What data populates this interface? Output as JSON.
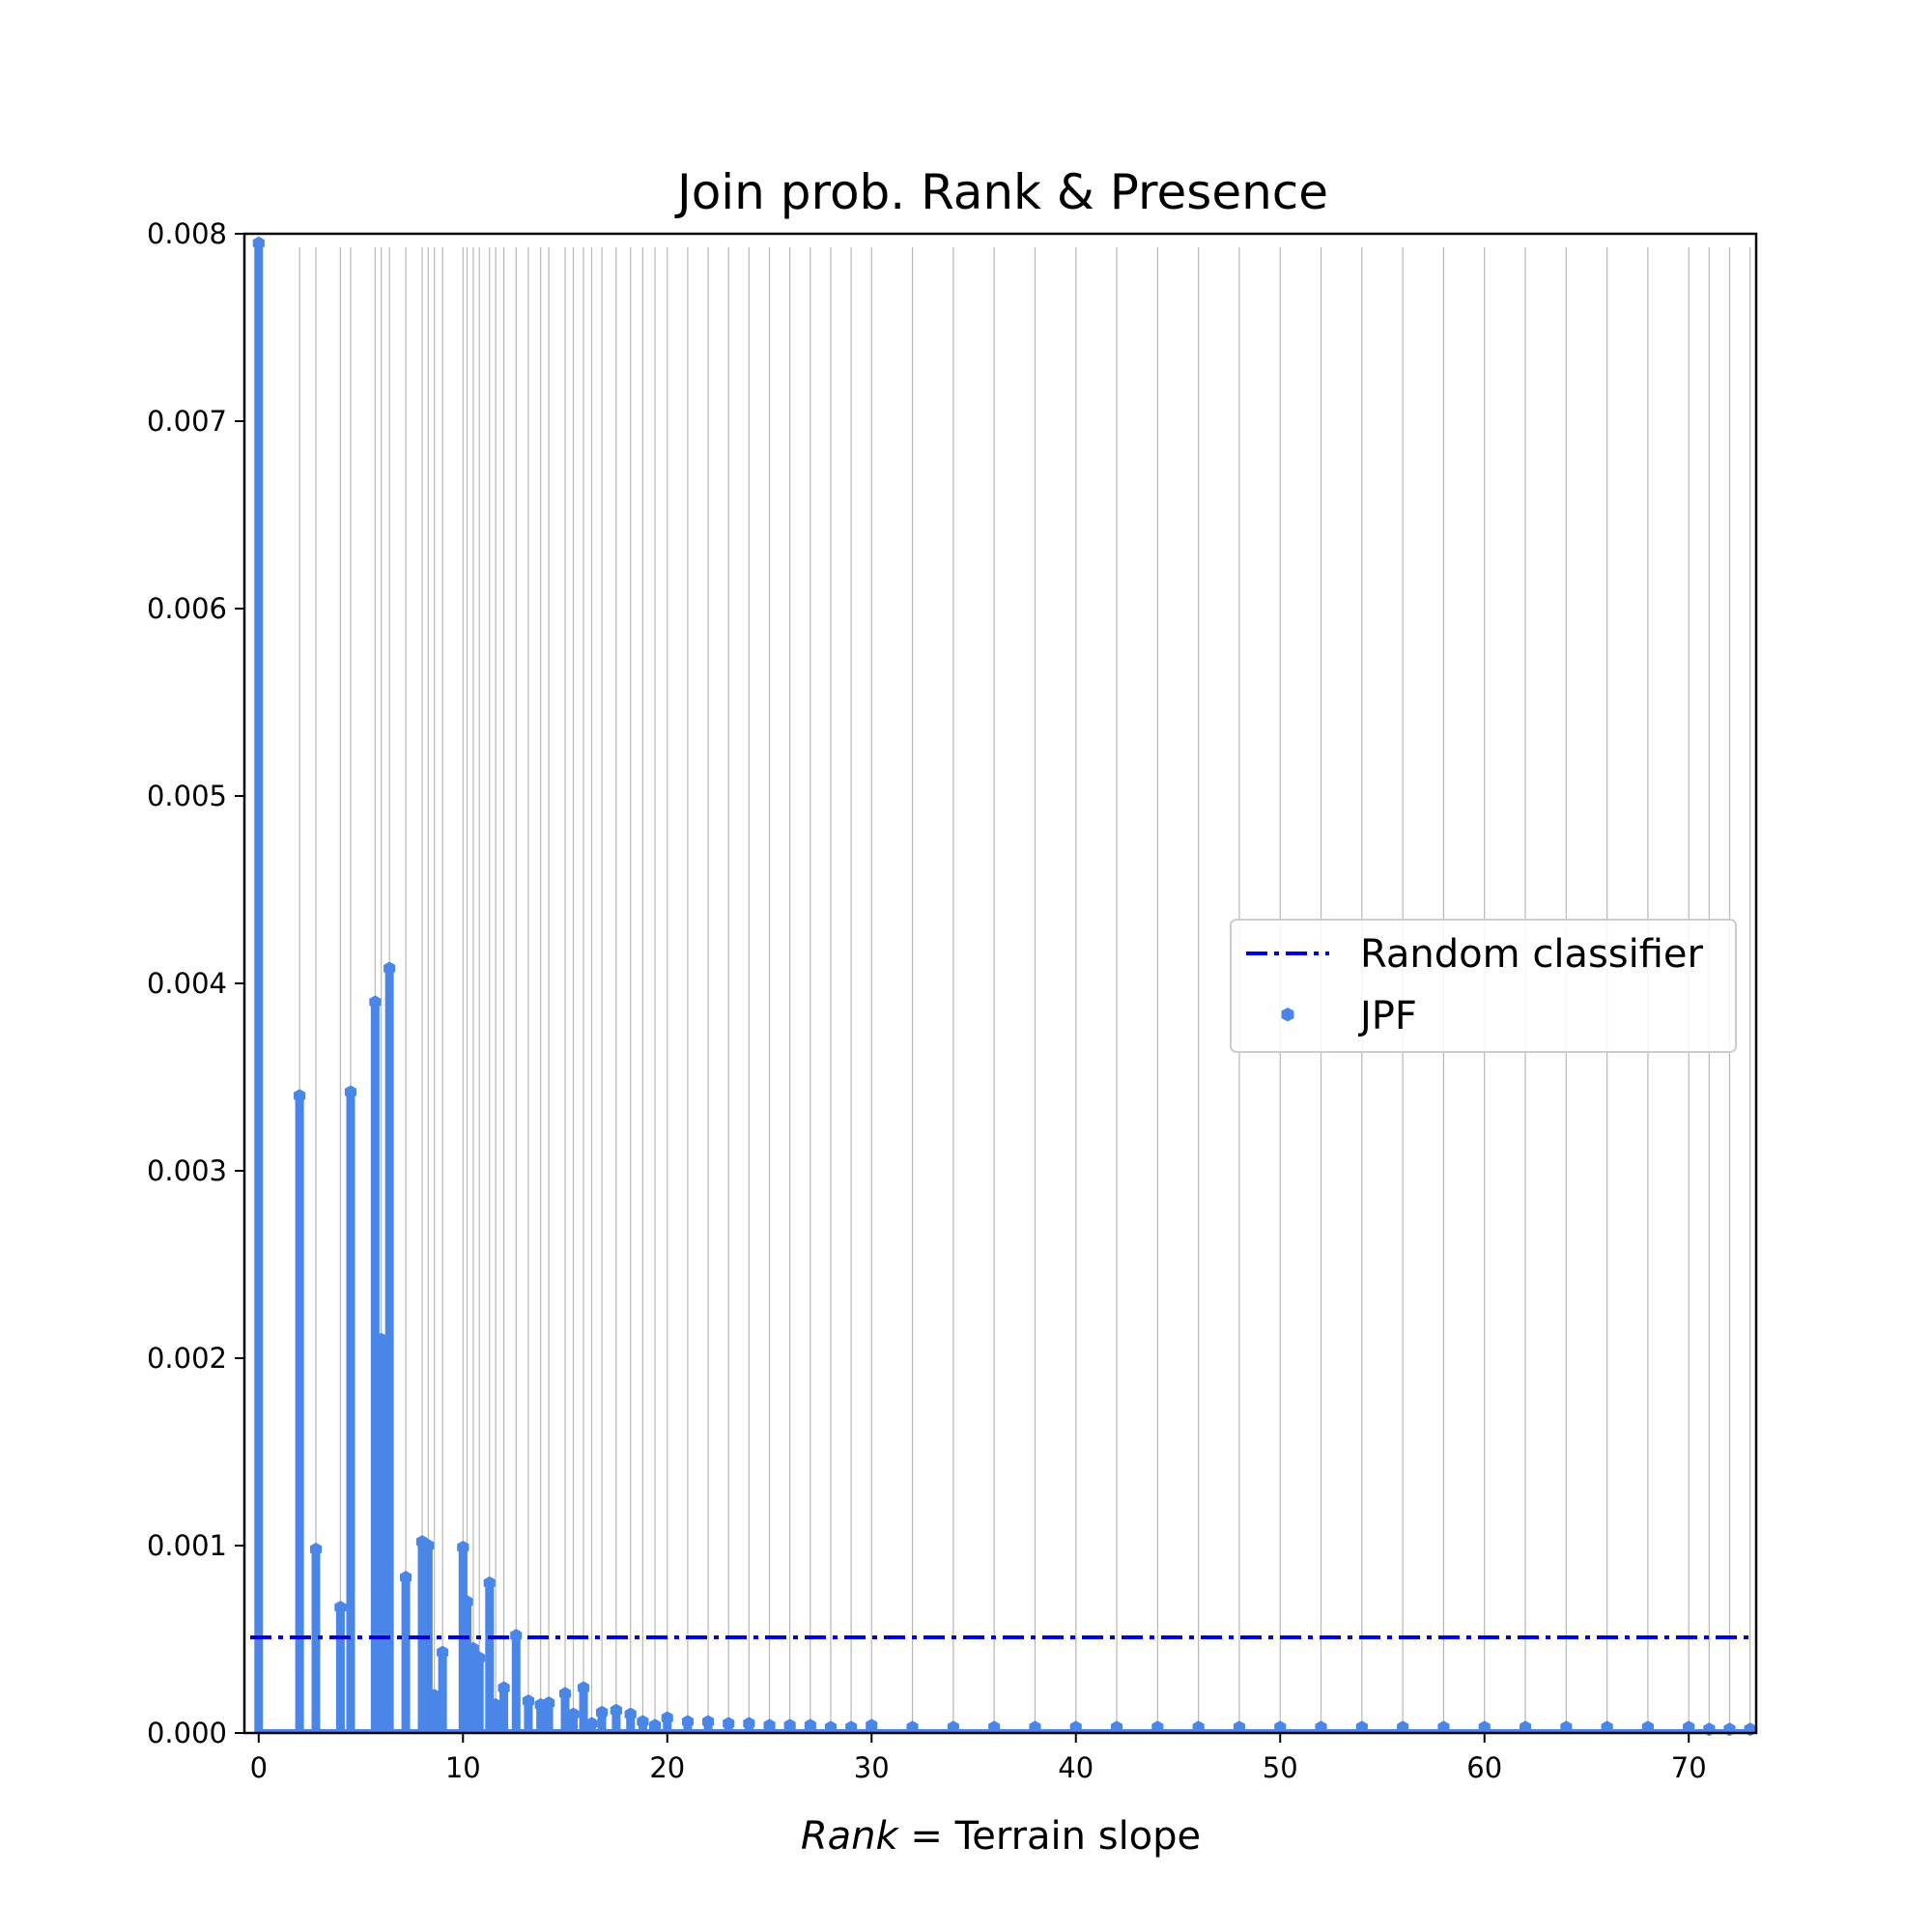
{
  "chart_data": {
    "type": "bar",
    "title": "Join prob. Rank & Presence",
    "xlabel_italic": "Rank",
    "xlabel_rest": " = Terrain slope",
    "ylabel": "",
    "xlim": [
      -0.7,
      73.3
    ],
    "ylim": [
      0,
      0.008
    ],
    "x_ticks": [
      0,
      10,
      20,
      30,
      40,
      50,
      60,
      70
    ],
    "y_ticks": [
      0.0,
      0.001,
      0.002,
      0.003,
      0.004,
      0.005,
      0.006,
      0.007,
      0.008
    ],
    "y_tick_labels": [
      "0.000",
      "0.001",
      "0.002",
      "0.003",
      "0.004",
      "0.005",
      "0.006",
      "0.007",
      "0.008"
    ],
    "grid": "vertical lines at every data point",
    "legend_position": "center-right",
    "series": [
      {
        "name": "JPF",
        "color": "#4a86e8",
        "style": "stem markers",
        "x": [
          0,
          2,
          2.8,
          4,
          4.5,
          5.7,
          6,
          6.4,
          7.2,
          8,
          8.3,
          8.6,
          9,
          10,
          10.2,
          10.5,
          10.8,
          11.3,
          11.6,
          12,
          12.6,
          13.2,
          13.8,
          14.2,
          15,
          15.4,
          15.9,
          16.3,
          16.8,
          17.5,
          18.2,
          18.8,
          19.4,
          20,
          21,
          22,
          23,
          24,
          25,
          26,
          27,
          28,
          29,
          30,
          32,
          34,
          36,
          38,
          40,
          42,
          44,
          46,
          48,
          50,
          52,
          54,
          56,
          58,
          60,
          62,
          64,
          66,
          68,
          70,
          71,
          72,
          73
        ],
        "values": [
          0.00795,
          0.0034,
          0.00098,
          0.00067,
          0.00342,
          0.0039,
          0.0021,
          0.00408,
          0.00083,
          0.00102,
          0.001,
          0.0002,
          0.00043,
          0.00099,
          0.0007,
          0.00045,
          0.0004,
          0.0008,
          0.00015,
          0.00024,
          0.00052,
          0.00017,
          0.00015,
          0.00016,
          0.00021,
          0.0001,
          0.00024,
          5e-05,
          0.00011,
          0.00012,
          0.0001,
          6e-05,
          4e-05,
          8e-05,
          6e-05,
          6e-05,
          5e-05,
          5e-05,
          4e-05,
          4e-05,
          4e-05,
          3e-05,
          3e-05,
          4e-05,
          3e-05,
          3e-05,
          3e-05,
          3e-05,
          3e-05,
          3e-05,
          3e-05,
          3e-05,
          3e-05,
          3e-05,
          3e-05,
          3e-05,
          3e-05,
          3e-05,
          3e-05,
          3e-05,
          3e-05,
          3e-05,
          3e-05,
          3e-05,
          2e-05,
          2e-05,
          2e-05
        ]
      },
      {
        "name": "Random classifier",
        "color": "#0000dd",
        "style": "dash-dot",
        "y": 0.00051
      }
    ]
  }
}
